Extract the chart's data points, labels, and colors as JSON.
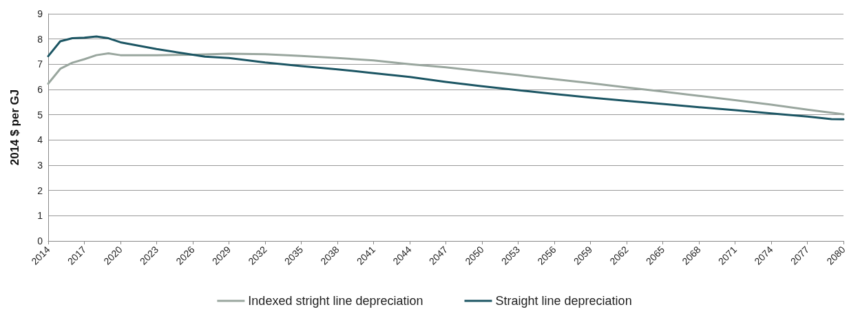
{
  "chart_data": {
    "type": "line",
    "ylabel": "2014 $ per GJ",
    "xlim": [
      2014,
      2080
    ],
    "xticks": [
      2014,
      2017,
      2020,
      2023,
      2026,
      2029,
      2032,
      2035,
      2038,
      2041,
      2044,
      2047,
      2050,
      2053,
      2056,
      2059,
      2062,
      2065,
      2068,
      2071,
      2074,
      2077,
      2080
    ],
    "ylim": [
      0,
      9
    ],
    "yticks": [
      0,
      1,
      2,
      3,
      4,
      5,
      6,
      7,
      8,
      9
    ],
    "grid": "y",
    "legend": "bottom",
    "marker": "none",
    "line_style": "solid",
    "series": [
      {
        "name": "Indexed stright line depreciation",
        "color": "#99a69e",
        "x": [
          2014,
          2015,
          2016,
          2017,
          2018,
          2019,
          2020,
          2023,
          2026,
          2029,
          2032,
          2035,
          2038,
          2041,
          2044,
          2047,
          2050,
          2053,
          2056,
          2059,
          2062,
          2065,
          2068,
          2071,
          2074,
          2077,
          2080
        ],
        "values": [
          6.23,
          6.82,
          7.06,
          7.2,
          7.36,
          7.43,
          7.36,
          7.36,
          7.38,
          7.42,
          7.4,
          7.33,
          7.25,
          7.15,
          7.0,
          6.88,
          6.72,
          6.57,
          6.41,
          6.25,
          6.08,
          5.92,
          5.75,
          5.58,
          5.4,
          5.2,
          5.02
        ]
      },
      {
        "name": "Straight line depreciation",
        "color": "#1b5563",
        "x": [
          2014,
          2015,
          2016,
          2017,
          2018,
          2019,
          2020,
          2023,
          2026,
          2027,
          2029,
          2032,
          2035,
          2038,
          2041,
          2044,
          2047,
          2050,
          2053,
          2056,
          2059,
          2062,
          2065,
          2068,
          2071,
          2074,
          2077,
          2079,
          2080
        ],
        "values": [
          7.32,
          7.91,
          8.03,
          8.05,
          8.1,
          8.03,
          7.87,
          7.6,
          7.38,
          7.3,
          7.25,
          7.07,
          6.93,
          6.8,
          6.65,
          6.5,
          6.3,
          6.13,
          5.97,
          5.82,
          5.68,
          5.55,
          5.43,
          5.3,
          5.18,
          5.05,
          4.93,
          4.83,
          4.82
        ]
      }
    ]
  }
}
